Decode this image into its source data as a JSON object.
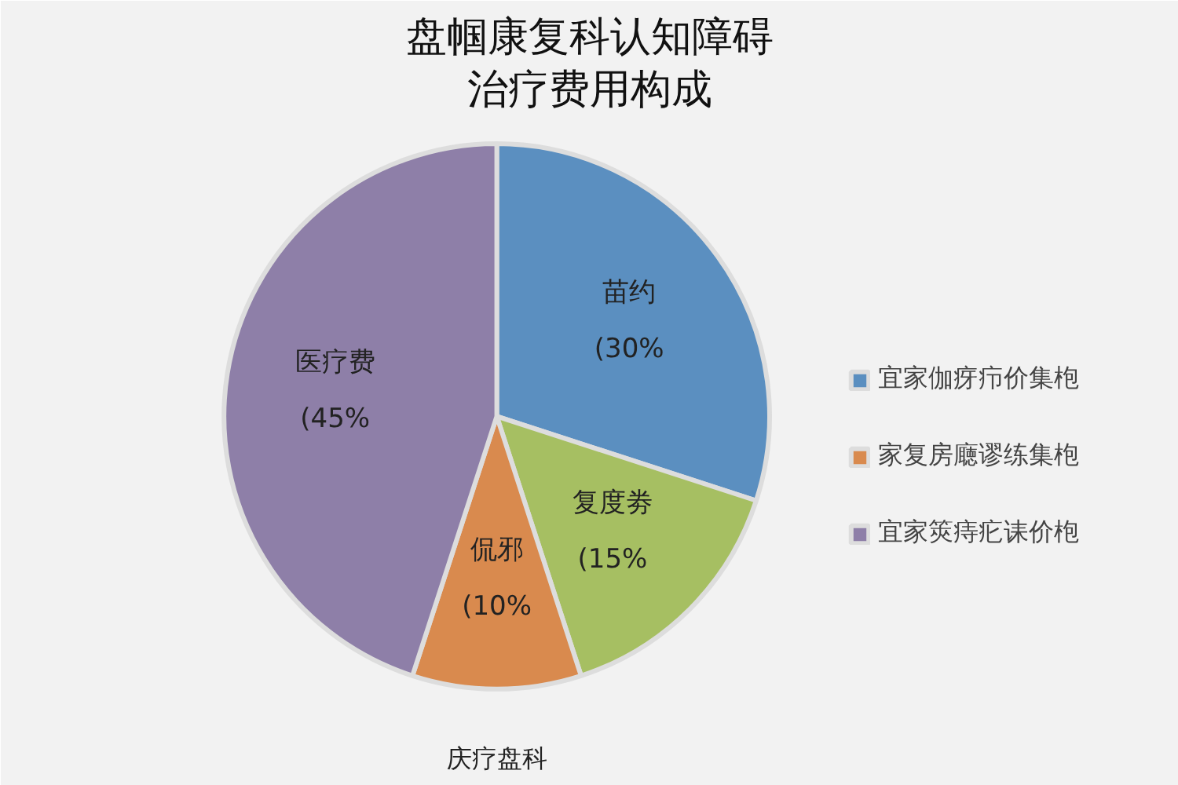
{
  "chart_data": {
    "type": "pie",
    "title": "盘帼康复科认知障碍",
    "subtitle": "治疗费用构成",
    "categories": [
      "宜家伽疨疖价集枹",
      null,
      "家复房廰谬练集枹",
      "宜家筴痔疕诔价枹"
    ],
    "values": [
      30,
      15,
      10,
      45
    ],
    "colors": [
      "#5b8fc0",
      "#a6bf62",
      "#d98a4e",
      "#8e7fa8"
    ],
    "value_labels": [
      "苗约\n(30%",
      "复度劵\n(15%",
      "侃邪\n(10%",
      "医疗费\n(45%"
    ],
    "legend": "right",
    "annotations": [
      "庆疗盘科"
    ]
  }
}
